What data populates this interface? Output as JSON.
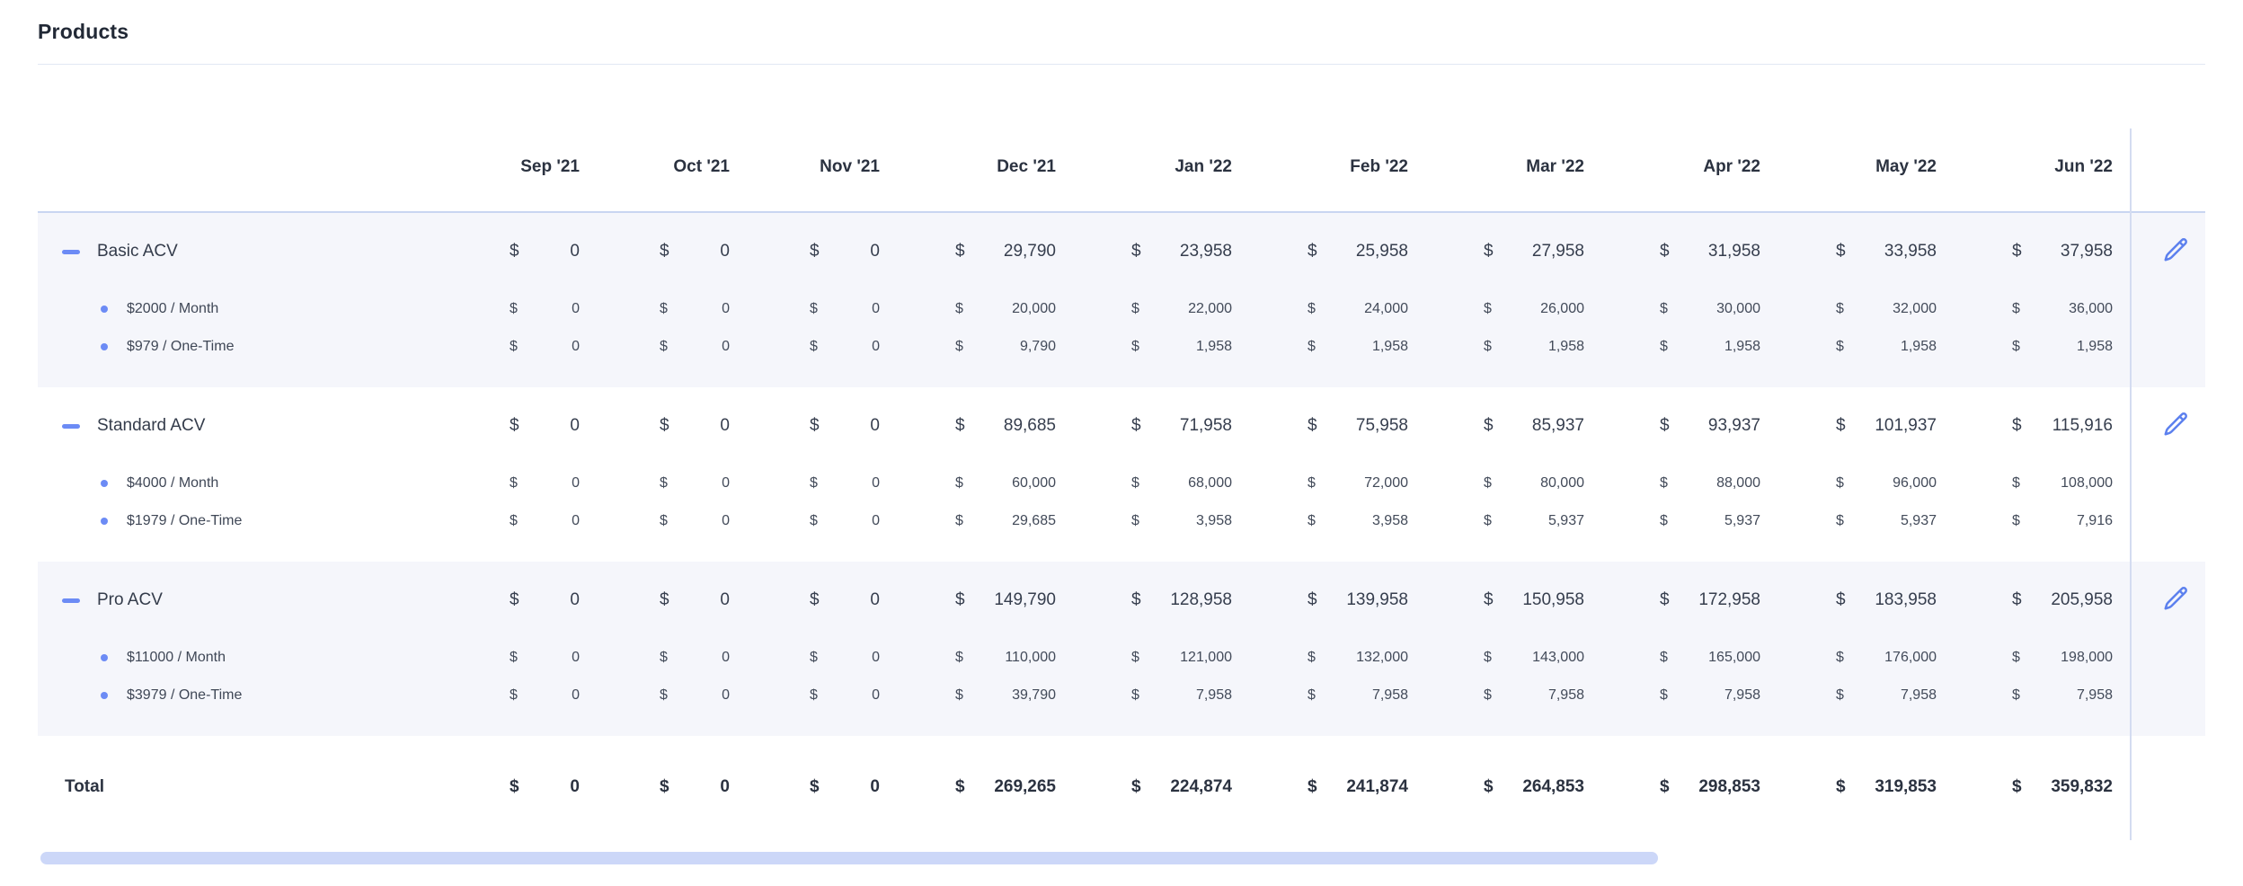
{
  "page": {
    "title": "Products"
  },
  "colors": {
    "accent": "#6c8bf5",
    "group_background": "#f5f6fb",
    "scrollbar": "#ccd7f8"
  },
  "table": {
    "currency_symbol": "$",
    "columns": [
      "Sep '21",
      "Oct '21",
      "Nov '21",
      "Dec '21",
      "Jan '22",
      "Feb '22",
      "Mar '22",
      "Apr '22",
      "May '22",
      "Jun '22"
    ],
    "groups": [
      {
        "name": "Basic ACV",
        "values": [
          "0",
          "0",
          "0",
          "29,790",
          "23,958",
          "25,958",
          "27,958",
          "31,958",
          "33,958",
          "37,958"
        ],
        "items": [
          {
            "name": "$2000 / Month",
            "values": [
              "0",
              "0",
              "0",
              "20,000",
              "22,000",
              "24,000",
              "26,000",
              "30,000",
              "32,000",
              "36,000"
            ]
          },
          {
            "name": "$979 / One-Time",
            "values": [
              "0",
              "0",
              "0",
              "9,790",
              "1,958",
              "1,958",
              "1,958",
              "1,958",
              "1,958",
              "1,958"
            ]
          }
        ]
      },
      {
        "name": "Standard ACV",
        "values": [
          "0",
          "0",
          "0",
          "89,685",
          "71,958",
          "75,958",
          "85,937",
          "93,937",
          "101,937",
          "115,916"
        ],
        "items": [
          {
            "name": "$4000 / Month",
            "values": [
              "0",
              "0",
              "0",
              "60,000",
              "68,000",
              "72,000",
              "80,000",
              "88,000",
              "96,000",
              "108,000"
            ]
          },
          {
            "name": "$1979 / One-Time",
            "values": [
              "0",
              "0",
              "0",
              "29,685",
              "3,958",
              "3,958",
              "5,937",
              "5,937",
              "5,937",
              "7,916"
            ]
          }
        ]
      },
      {
        "name": "Pro ACV",
        "values": [
          "0",
          "0",
          "0",
          "149,790",
          "128,958",
          "139,958",
          "150,958",
          "172,958",
          "183,958",
          "205,958"
        ],
        "items": [
          {
            "name": "$11000 / Month",
            "values": [
              "0",
              "0",
              "0",
              "110,000",
              "121,000",
              "132,000",
              "143,000",
              "165,000",
              "176,000",
              "198,000"
            ]
          },
          {
            "name": "$3979 / One-Time",
            "values": [
              "0",
              "0",
              "0",
              "39,790",
              "7,958",
              "7,958",
              "7,958",
              "7,958",
              "7,958",
              "7,958"
            ]
          }
        ]
      }
    ],
    "total": {
      "label": "Total",
      "values": [
        "0",
        "0",
        "0",
        "269,265",
        "224,874",
        "241,874",
        "264,853",
        "298,853",
        "319,853",
        "359,832"
      ]
    }
  }
}
